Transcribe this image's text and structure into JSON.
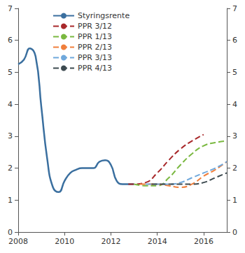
{
  "chart_data": {
    "type": "line",
    "xlim": [
      2008,
      2017
    ],
    "xticks": [
      2008,
      2010,
      2012,
      2014,
      2016
    ],
    "ylim": [
      0,
      7
    ],
    "yticks": [
      0,
      1,
      2,
      3,
      4,
      5,
      6,
      7
    ],
    "y2lim": [
      0,
      7
    ],
    "y2ticks": [
      0,
      1,
      2,
      3,
      4,
      5,
      6,
      7
    ],
    "grid": false,
    "legend": "upper left",
    "series": [
      {
        "name": "Styringsrente",
        "color": "#3a6f9f",
        "line_style": "solid",
        "x": [
          2008.0,
          2008.25,
          2008.5,
          2008.75,
          2009.0,
          2009.25,
          2009.5,
          2009.75,
          2010.0,
          2010.25,
          2010.5,
          2010.75,
          2011.0,
          2011.25,
          2011.5,
          2011.75,
          2012.0,
          2012.25,
          2012.5,
          2012.75,
          2013.0
        ],
        "values": [
          5.25,
          5.4,
          5.75,
          5.5,
          3.9,
          2.3,
          1.4,
          1.25,
          1.6,
          1.85,
          1.95,
          2.0,
          2.0,
          2.0,
          2.2,
          2.25,
          2.1,
          1.6,
          1.5,
          1.5,
          1.5
        ]
      },
      {
        "name": "PPR 3/12",
        "color": "#a8282a",
        "line_style": "dashed",
        "x": [
          2012.75,
          2013.0,
          2013.5,
          2014.0,
          2014.5,
          2015.0,
          2015.5,
          2016.0
        ],
        "values": [
          1.5,
          1.5,
          1.55,
          1.85,
          2.25,
          2.6,
          2.85,
          3.05
        ]
      },
      {
        "name": "PPR 1/13",
        "color": "#7ab840",
        "line_style": "dashed",
        "x": [
          2013.0,
          2013.5,
          2014.0,
          2014.5,
          2015.0,
          2015.5,
          2016.0,
          2016.5,
          2017.0
        ],
        "values": [
          1.5,
          1.45,
          1.45,
          1.7,
          2.1,
          2.45,
          2.7,
          2.8,
          2.85
        ]
      },
      {
        "name": "PPR 2/13",
        "color": "#f07f3c",
        "line_style": "dashed",
        "x": [
          2013.25,
          2014.0,
          2014.5,
          2015.0,
          2015.5,
          2016.0,
          2016.5,
          2017.0
        ],
        "values": [
          1.5,
          1.5,
          1.45,
          1.4,
          1.5,
          1.75,
          1.95,
          2.2
        ]
      },
      {
        "name": "PPR 3/13",
        "color": "#6fa8dc",
        "line_style": "dashed",
        "x": [
          2013.5,
          2014.0,
          2014.5,
          2015.0,
          2015.5,
          2016.0,
          2016.5,
          2017.0
        ],
        "values": [
          1.5,
          1.5,
          1.5,
          1.55,
          1.7,
          1.85,
          2.0,
          2.2
        ]
      },
      {
        "name": "PPR 4/13",
        "color": "#3d4a50",
        "line_style": "dashed",
        "x": [
          2013.75,
          2014.5,
          2015.0,
          2015.5,
          2016.0,
          2016.5,
          2017.0
        ],
        "values": [
          1.5,
          1.5,
          1.5,
          1.5,
          1.55,
          1.7,
          1.85
        ]
      }
    ]
  }
}
